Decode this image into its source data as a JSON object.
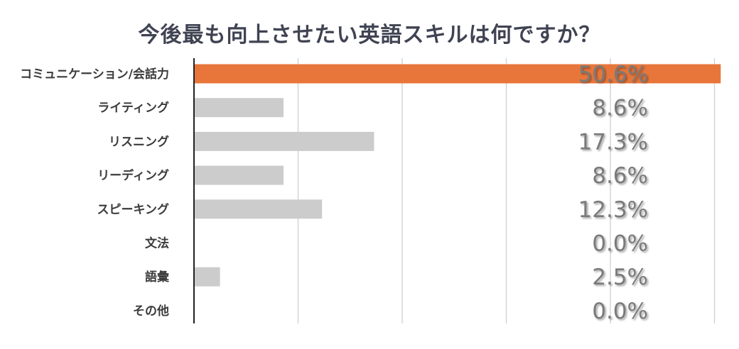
{
  "chart_data": {
    "type": "bar",
    "orientation": "horizontal",
    "title": "今後最も向上させたい英語スキルは何ですか？",
    "categories": [
      "コミュニケーション/会話力",
      "ライティング",
      "リスニング",
      "リーディング",
      "スピーキング",
      "文法",
      "語彙",
      "その他"
    ],
    "values": [
      50.6,
      8.6,
      17.3,
      8.6,
      12.3,
      0.0,
      2.5,
      0.0
    ],
    "value_labels": [
      "50.6%",
      "8.6%",
      "17.3%",
      "8.6%",
      "12.3%",
      "0.0%",
      "2.5%",
      "0.0%"
    ],
    "xlim": [
      0,
      60
    ],
    "grid": true,
    "highlight_index": 0,
    "colors": {
      "highlight": "#e8763a",
      "default": "#cccccc",
      "grid": "#d0d0d0",
      "axis": "#222222",
      "value_text": "#7a7a7a"
    }
  }
}
